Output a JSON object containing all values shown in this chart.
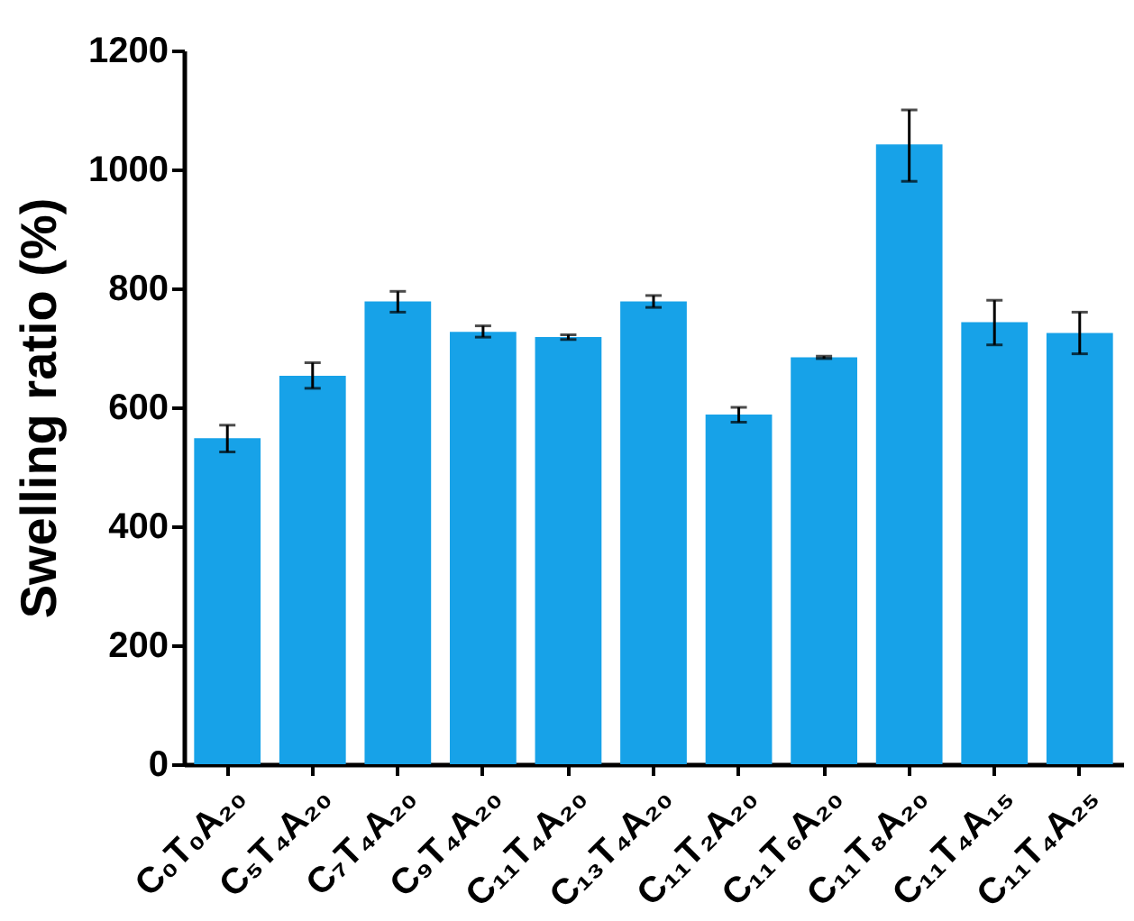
{
  "chart_data": {
    "type": "bar",
    "ylabel": "Swelling ratio (%)",
    "categories": [
      "C₀T₀A₂₀",
      "C₅T₄A₂₀",
      "C₇T₄A₂₀",
      "C₉T₄A₂₀",
      "C₁₁T₄A₂₀",
      "C₁₃T₄A₂₀",
      "C₁₁T₂A₂₀",
      "C₁₁T₆A₂₀",
      "C₁₁T₈A₂₀",
      "C₁₁T₄A₁₅",
      "C₁₁T₄A₂₅"
    ],
    "values": [
      548,
      653,
      778,
      727,
      718,
      778,
      588,
      684,
      1042,
      743,
      725
    ],
    "errors": [
      [
        525,
        570
      ],
      [
        632,
        675
      ],
      [
        760,
        795
      ],
      [
        718,
        737
      ],
      [
        714,
        722
      ],
      [
        768,
        788
      ],
      [
        575,
        600
      ],
      [
        682,
        686
      ],
      [
        980,
        1100
      ],
      [
        705,
        780
      ],
      [
        690,
        760
      ]
    ],
    "color": "#17a2e8",
    "ylim": [
      0,
      1200
    ],
    "yticks": [
      0,
      200,
      400,
      600,
      800,
      1000,
      1200
    ],
    "grid": false
  }
}
